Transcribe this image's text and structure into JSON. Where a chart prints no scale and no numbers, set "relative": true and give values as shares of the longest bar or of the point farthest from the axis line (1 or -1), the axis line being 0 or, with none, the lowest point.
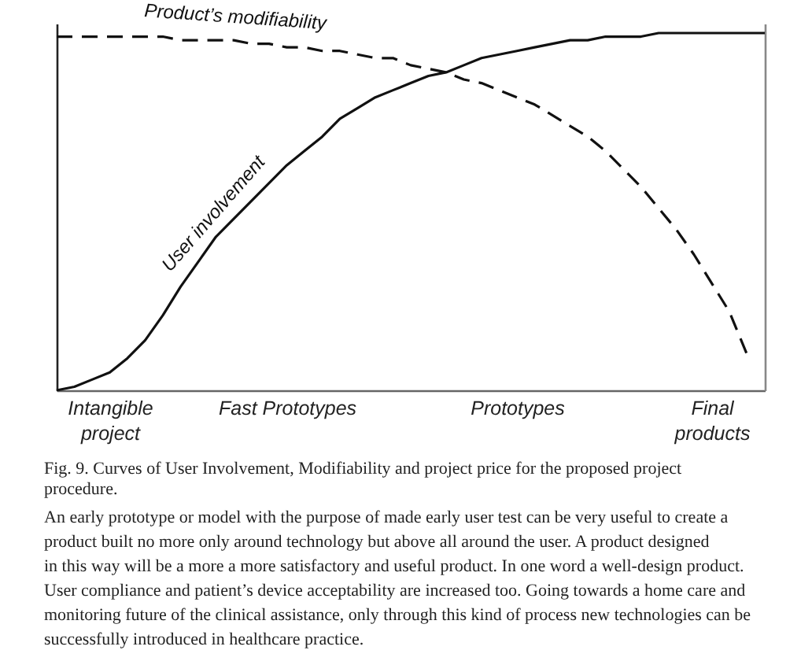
{
  "chart_data": {
    "type": "line",
    "relative": true,
    "categories": [
      null,
      null,
      null,
      "Intangible\nproject",
      null,
      null,
      null,
      null,
      null,
      null,
      null,
      null,
      null,
      "Fast Prototypes",
      null,
      null,
      null,
      null,
      null,
      null,
      null,
      null,
      null,
      null,
      null,
      null,
      "Prototypes",
      null,
      null,
      null,
      null,
      null,
      null,
      null,
      null,
      null,
      null,
      "Final\nproducts",
      null,
      null,
      null
    ],
    "series": [
      {
        "name": "Product’s modifiability",
        "color": "#111111",
        "line_style": "dashed",
        "values": [
          0.99,
          0.99,
          0.99,
          0.99,
          0.99,
          0.99,
          0.99,
          0.98,
          0.98,
          0.98,
          0.98,
          0.97,
          0.97,
          0.96,
          0.96,
          0.95,
          0.95,
          0.94,
          0.93,
          0.93,
          0.91,
          0.9,
          0.89,
          0.87,
          0.86,
          0.84,
          0.82,
          0.8,
          0.77,
          0.74,
          0.71,
          0.67,
          0.62,
          0.57,
          0.51,
          0.45,
          0.38,
          0.3,
          0.22,
          0.1,
          null
        ]
      },
      {
        "name": "User involvement",
        "color": "#111111",
        "line_style": "solid",
        "values": [
          0,
          0.01,
          0.03,
          0.05,
          0.09,
          0.14,
          0.21,
          0.29,
          0.36,
          0.43,
          0.48,
          0.53,
          0.58,
          0.63,
          0.67,
          0.71,
          0.76,
          0.79,
          0.82,
          0.84,
          0.86,
          0.88,
          0.89,
          0.91,
          0.93,
          0.94,
          0.95,
          0.96,
          0.97,
          0.98,
          0.98,
          0.99,
          0.99,
          0.99,
          1.0,
          1.0,
          1.0,
          1.0,
          1.0,
          1.0,
          1.0
        ]
      }
    ],
    "annotations": [
      "Fig. 9. Curves of User Involvement, Modifiability and project price for the proposed project\nprocedure.",
      "An early prototype or model with the purpose of made early user test can be very useful to create a\nproduct built no more only around technology but above all around the user. A product designed\nin this way will be a more a more satisfactory and useful product. In one word a well-design product.\nUser compliance and patient’s device acceptability are increased too. Going towards a home care and\nmonitoring future of the clinical assistance, only through this kind of process new technologies can be\nsuccessfully introduced in healthcare practice."
    ]
  }
}
